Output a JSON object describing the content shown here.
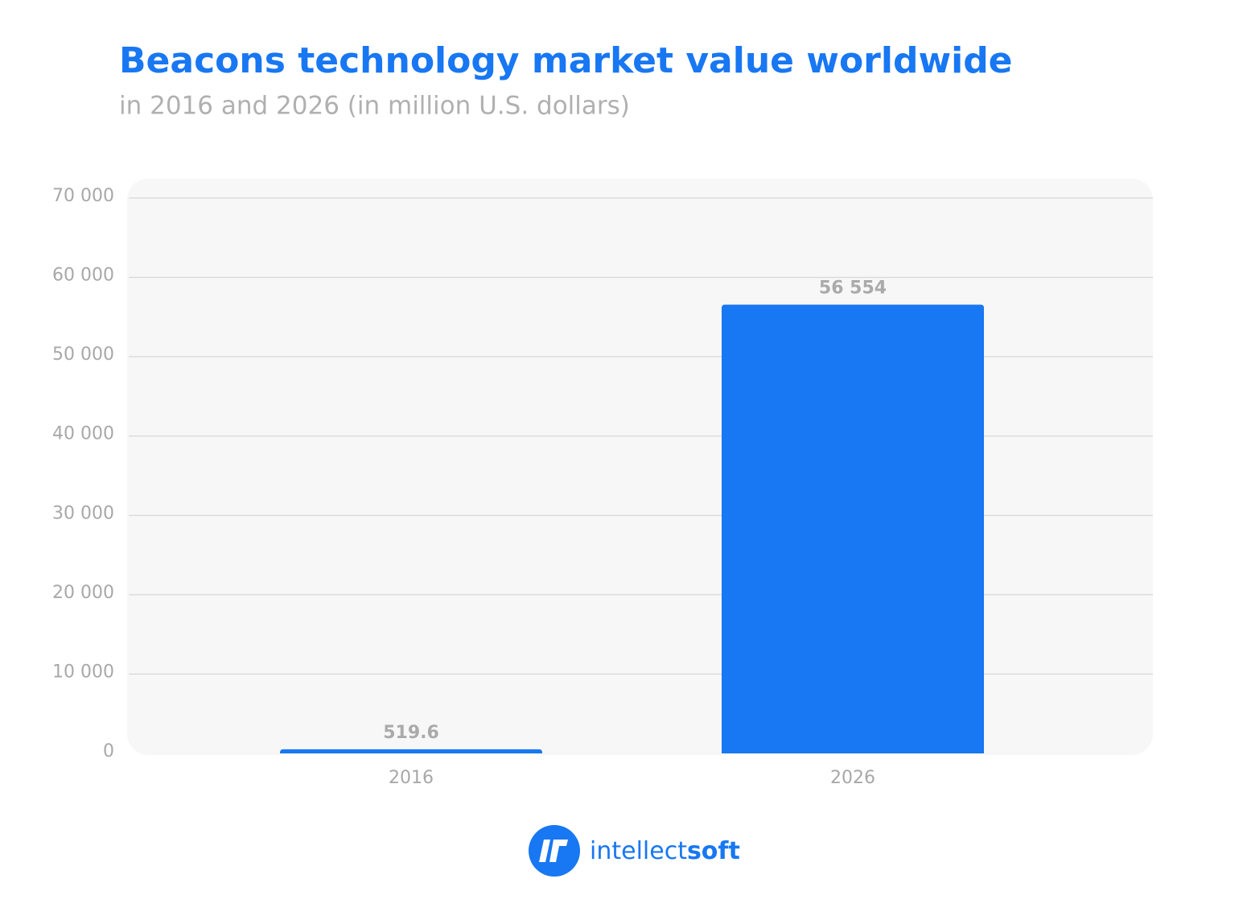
{
  "chart_data": {
    "type": "bar",
    "title": "Beacons technology market value worldwide",
    "subtitle": "in 2016 and 2026 (in million U.S. dollars)",
    "categories": [
      "2016",
      "2026"
    ],
    "values": [
      519.6,
      56554
    ],
    "value_labels": [
      "519.6",
      "56 554"
    ],
    "color": "#1877f2",
    "ylim": [
      0,
      70000
    ],
    "yticks": [
      0,
      {
        "value": 10000,
        "label": "10 000"
      },
      {
        "value": 20000,
        "label": "20 000"
      },
      {
        "value": 30000,
        "label": "30 000"
      },
      {
        "value": 40000,
        "label": "40 000"
      },
      {
        "value": 50000,
        "label": "50 000"
      },
      {
        "value": 60000,
        "label": "60 000"
      },
      {
        "value": 70000,
        "label": "70 000"
      }
    ],
    "grid": true
  },
  "footer": {
    "brand_light": "intellect",
    "brand_bold": "soft"
  }
}
